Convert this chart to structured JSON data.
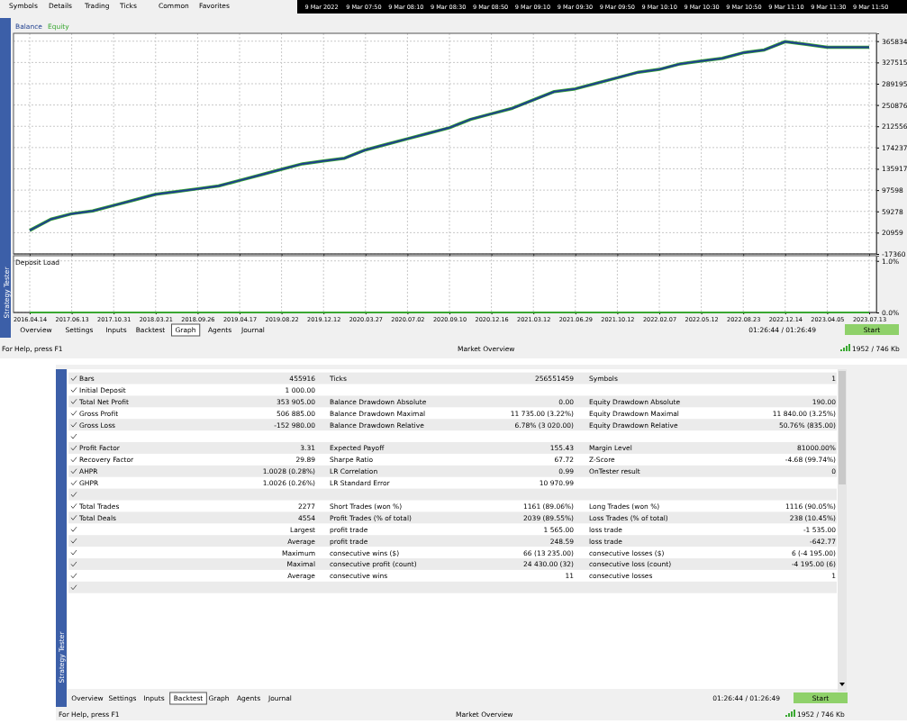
{
  "chart_data": [
    {
      "type": "line",
      "legend": "top left",
      "grid": true,
      "tick_labels": "y",
      "categories": [
        "2016.04.14",
        null,
        "2017.06.13",
        null,
        "2017.10.31",
        null,
        "2018.03.21",
        null,
        "2018.09.26",
        null,
        "2019.04.17",
        null,
        "2019.08.22",
        null,
        "2019.12.12",
        null,
        "2020.03.27",
        null,
        "2020.07.02",
        null,
        "2020.09.10",
        null,
        "2020.12.16",
        null,
        "2021.03.12",
        null,
        "2021.06.29",
        null,
        "2021.10.12",
        null,
        "2022.02.07",
        null,
        "2022.05.12",
        null,
        "2022.08.23",
        null,
        "2022.12.14",
        null,
        "2023.04.05",
        null,
        "2023.07.13"
      ],
      "ylim": [
        -17360,
        380000
      ],
      "yticks": [
        -17360,
        20959,
        59278,
        97598,
        135917,
        174237,
        212556,
        250876,
        289195,
        327515,
        365834
      ],
      "series": [
        {
          "name": "Balance",
          "color": "#1f3f8f",
          "values": [
            25000,
            45000,
            55000,
            60000,
            70000,
            80000,
            90000,
            95000,
            100000,
            105000,
            115000,
            125000,
            135000,
            145000,
            150000,
            155000,
            170000,
            180000,
            190000,
            200000,
            210000,
            225000,
            235000,
            245000,
            260000,
            275000,
            280000,
            290000,
            300000,
            310000,
            315000,
            325000,
            330000,
            335000,
            345000,
            350000,
            365000,
            360000,
            355000,
            355000,
            355000
          ]
        },
        {
          "name": "Equity",
          "color": "#3aa832",
          "values": [
            25000,
            45000,
            55000,
            60000,
            70000,
            80000,
            90000,
            95000,
            100000,
            105000,
            115000,
            125000,
            135000,
            145000,
            150000,
            155000,
            170000,
            180000,
            190000,
            200000,
            210000,
            225000,
            235000,
            245000,
            260000,
            275000,
            280000,
            290000,
            300000,
            310000,
            315000,
            325000,
            330000,
            335000,
            345000,
            350000,
            365000,
            360000,
            355000,
            355000,
            355000
          ]
        }
      ]
    },
    {
      "type": "line",
      "title": "Deposit Load",
      "grid": true,
      "categories": [
        "2016.04.14",
        null,
        "2017.06.13",
        null,
        "2017.10.31",
        null,
        "2018.03.21",
        null,
        "2018.09.26",
        null,
        "2019.04.17",
        null,
        "2019.08.22",
        null,
        "2019.12.12",
        null,
        "2020.03.27",
        null,
        "2020.07.02",
        null,
        "2020.09.10",
        null,
        "2020.12.16",
        null,
        "2021.03.12",
        null,
        "2021.06.29",
        null,
        "2021.10.12",
        null,
        "2022.02.07",
        null,
        "2022.05.12",
        null,
        "2022.08.23",
        null,
        "2022.12.14",
        null,
        "2023.04.05",
        null,
        "2023.07.13"
      ],
      "ylim": [
        0,
        1.1
      ],
      "yticks": [
        {
          "value": 0,
          "label": "0.0%"
        },
        {
          "value": 1,
          "label": "1.0%"
        }
      ],
      "series": [
        {
          "color": "#3aa832",
          "values": [
            0,
            0,
            0,
            0,
            0,
            0,
            0,
            0,
            0,
            0,
            0,
            0,
            0,
            0,
            0,
            0,
            0,
            0,
            0,
            0,
            0,
            0,
            0,
            0,
            0,
            0,
            0,
            0,
            0,
            0,
            0,
            0,
            0,
            0,
            0,
            0,
            0,
            0,
            0,
            0,
            0
          ]
        }
      ]
    },
    {
      "type": "other",
      "cell_labels": [
        [
          "Bars",
          "455916",
          "Ticks",
          "256551459",
          "Symbols",
          "1"
        ],
        [
          "Initial Deposit",
          "1 000.00",
          null,
          null,
          null,
          null
        ],
        [
          "Total Net Profit",
          "353 905.00",
          "Balance Drawdown Absolute",
          "0.00",
          "Equity Drawdown Absolute",
          "190.00"
        ],
        [
          "Gross Profit",
          "506 885.00",
          "Balance Drawdown Maximal",
          "11 735.00 (3.22%)",
          "Equity Drawdown Maximal",
          "11 840.00 (3.25%)"
        ],
        [
          "Gross Loss",
          "-152 980.00",
          "Balance Drawdown Relative",
          "6.78% (3 020.00)",
          "Equity Drawdown Relative",
          "50.76% (835.00)"
        ],
        [
          null,
          null,
          null,
          null,
          null,
          null
        ],
        [
          "Profit Factor",
          "3.31",
          "Expected Payoff",
          "155.43",
          "Margin Level",
          "81000.00%"
        ],
        [
          "Recovery Factor",
          "29.89",
          "Sharpe Ratio",
          "67.72",
          "Z-Score",
          "-4.68 (99.74%)"
        ],
        [
          "AHPR",
          "1.0028 (0.28%)",
          "LR Correlation",
          "0.99",
          "OnTester result",
          "0"
        ],
        [
          "GHPR",
          "1.0026 (0.26%)",
          "LR Standard Error",
          "10 970.99",
          null,
          null
        ],
        [
          null,
          null,
          null,
          null,
          null,
          null
        ],
        [
          "Total Trades",
          "2277",
          "Short Trades (won %)",
          "1161 (89.06%)",
          "Long Trades (won %)",
          "1116 (90.05%)"
        ],
        [
          "Total Deals",
          "4554",
          "Profit Trades (% of total)",
          "2039 (89.55%)",
          "Loss Trades (% of total)",
          "238 (10.45%)"
        ],
        [
          null,
          "Largest",
          "profit trade",
          "1 565.00",
          "loss trade",
          "-1 535.00"
        ],
        [
          null,
          "Average",
          "profit trade",
          "248.59",
          "loss trade",
          "-642.77"
        ],
        [
          null,
          "Maximum",
          "consecutive wins ($)",
          "66 (13 235.00)",
          "consecutive losses ($)",
          "6 (-4 195.00)"
        ],
        [
          null,
          "Maximal",
          "consecutive profit (count)",
          "24 430.00 (32)",
          "consecutive loss (count)",
          "-4 195.00 (6)"
        ],
        [
          null,
          "Average",
          "consecutive wins",
          "11",
          "consecutive losses",
          "1"
        ],
        [
          null,
          null,
          null,
          null,
          null,
          null
        ]
      ],
      "annotations": [
        "Symbols",
        "Details",
        "Trading",
        "Ticks",
        "Common",
        "Favorites",
        "9 Mar 2022",
        "9 Mar 07:50",
        "9 Mar 08:10",
        "9 Mar 08:30",
        "9 Mar 08:50",
        "9 Mar 09:10",
        "9 Mar 09:30",
        "9 Mar 09:50",
        "9 Mar 10:10",
        "9 Mar 10:30",
        "9 Mar 10:50",
        "9 Mar 11:10",
        "9 Mar 11:30",
        "9 Mar 11:50",
        "Strategy Tester",
        "Overview",
        "Settings",
        "Inputs",
        "Backtest",
        "Graph",
        "Agents",
        "Journal",
        "01:26:44 / 01:26:49",
        "Start",
        "For Help, press F1",
        "Market Overview",
        "1952 / 746 Kb",
        "Strategy Tester",
        "Overview",
        "Settings",
        "Inputs",
        "Backtest",
        "Graph",
        "Agents",
        "Journal",
        "01:26:44 / 01:26:49",
        "Start",
        "For Help, press F1",
        "Market Overview",
        "1952 / 746 Kb"
      ]
    }
  ]
}
